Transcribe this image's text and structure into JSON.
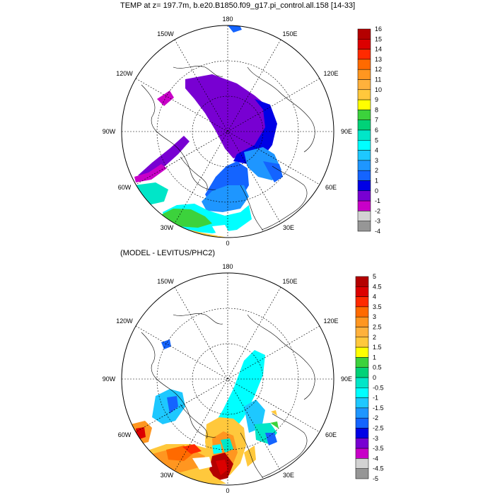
{
  "panel_top": {
    "title": "TEMP at z= 197.7m, b.e20.B1850.f09_g17.pi_control.all.158 [14-33]",
    "longitude_labels": [
      "180",
      "150W",
      "150E",
      "120W",
      "120E",
      "90W",
      "90E",
      "60W",
      "60E",
      "30W",
      "30E",
      "0"
    ],
    "colorbar": {
      "labels": [
        "16",
        "15",
        "14",
        "13",
        "12",
        "11",
        "10",
        "9",
        "8",
        "7",
        "6",
        "5",
        "4",
        "3",
        "2",
        "1",
        "0",
        "-1",
        "-2",
        "-3",
        "-4"
      ],
      "colors": [
        "#b40000",
        "#dc0000",
        "#ff2a00",
        "#ff6a00",
        "#ff9620",
        "#ffb13c",
        "#ffc83c",
        "#ffff00",
        "#3cd23c",
        "#00d278",
        "#00e6c8",
        "#00ffff",
        "#1ec8ff",
        "#1e96ff",
        "#1464ff",
        "#0000e6",
        "#7800d2",
        "#c800c8",
        "#d2d2d2",
        "#969696"
      ]
    }
  },
  "panel_bottom": {
    "title": "(MODEL - LEVITUS/PHC2)",
    "longitude_labels": [
      "180",
      "150W",
      "150E",
      "120W",
      "120E",
      "90W",
      "90E",
      "60W",
      "60E",
      "30W",
      "30E",
      "0"
    ],
    "colorbar": {
      "labels": [
        "5",
        "4.5",
        "4",
        "3.5",
        "3",
        "2.5",
        "2",
        "1.5",
        "1",
        "0.5",
        "0",
        "-0.5",
        "-1",
        "-1.5",
        "-2",
        "-2.5",
        "-3",
        "-3.5",
        "-4",
        "-4.5",
        "-5"
      ],
      "colors": [
        "#b40000",
        "#dc0000",
        "#ff2a00",
        "#ff6a00",
        "#ff9620",
        "#ffb13c",
        "#ffc83c",
        "#ffff00",
        "#3cd23c",
        "#00d278",
        "#00e6c8",
        "#00ffff",
        "#1ec8ff",
        "#1e96ff",
        "#1464ff",
        "#0000e6",
        "#7800d2",
        "#c800c8",
        "#d2d2d2",
        "#969696"
      ]
    }
  }
}
